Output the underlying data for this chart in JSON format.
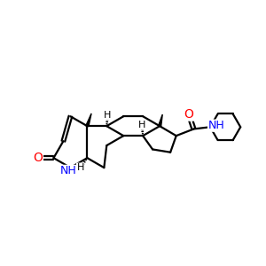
{
  "background": "#ffffff",
  "atom_colors": {
    "O": "#ff0000",
    "N": "#0000ff",
    "H": "#000000",
    "C": "#000000"
  },
  "bond_color": "#000000",
  "bond_width": 1.6,
  "figure_size": [
    3.0,
    3.0
  ],
  "dpi": 100,
  "xlim": [
    0.5,
    10.0
  ],
  "ylim": [
    1.0,
    9.5
  ]
}
